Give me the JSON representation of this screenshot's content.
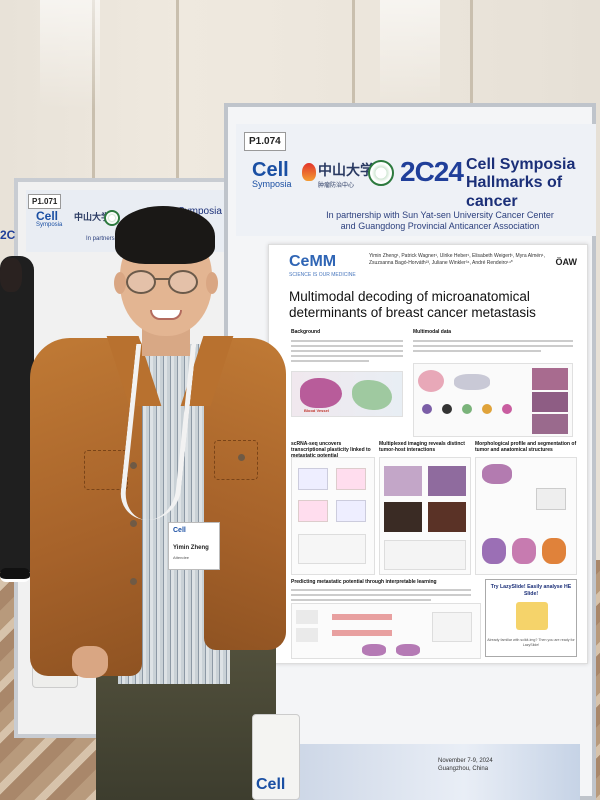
{
  "booth": {
    "poster_id_main": "P1.074",
    "poster_id_left": "P1.071",
    "cell_logo": "Cell",
    "cell_sub": "Symposia",
    "sysu_name": "中山大学",
    "sysu_sub": "肿瘤防治中心",
    "year_logo": "2C24",
    "year_left": "2C",
    "symposia_title_line1": "Cell Symposia",
    "symposia_title_line2": "Hallmarks of cancer",
    "symposia_left": "Symposia",
    "partner_line1": "In partnership with Sun Yat-sen University Cancer Center",
    "partner_line2": "and Guangdong Provincial Anticancer Association",
    "partner_left": "In partnersh",
    "footer_date": "November 7-9, 2024",
    "footer_place": "Guangzhou, China",
    "bag_logo": "Cell"
  },
  "poster": {
    "institute_logo": "CeMM",
    "institute_tagline": "SCIENCE IS OUR MEDICINE",
    "partner_mark": "ÖAW",
    "authors": "Yimin Zheng¹, Patrick Wagner¹, Ulrike Heber¹, Elisabeth Weigert¹, Myra Almén¹, Zsuzsanna Bagó-Horváth²³, Juliane Winkler³⁴, André Rendeiro¹⁴*",
    "title": "Multimodal decoding of microanatomical determinants of breast cancer metastasis",
    "sections": {
      "background": "Background",
      "multimodal_data": "Multimodal data",
      "rnaseq": "scRNA-seq uncovers transcriptional plasticity linked to metastatic potential",
      "multiplexed": "Multiplexed imaging reveals distinct tumor-host interactions",
      "morphology": "Morphological profile and segmentation of tumor and anatomical structures",
      "predicting": "Predicting metastatic potential through interpretable learning"
    },
    "blood_vessel_label": "Blood Vessel",
    "lazyslide_title": "Try LazySlide! Easily analyse HE Slide!",
    "lazyslide_url": "Already familiar with scikit-img? Then you are ready for LazySlide!"
  },
  "badge": {
    "logo": "Cell",
    "name": "Yimin Zheng",
    "role": "Attendee"
  },
  "colors": {
    "cell_blue": "#1a4fa3",
    "cemm_blue": "#2f65b5",
    "jacket": "#a6622a"
  }
}
